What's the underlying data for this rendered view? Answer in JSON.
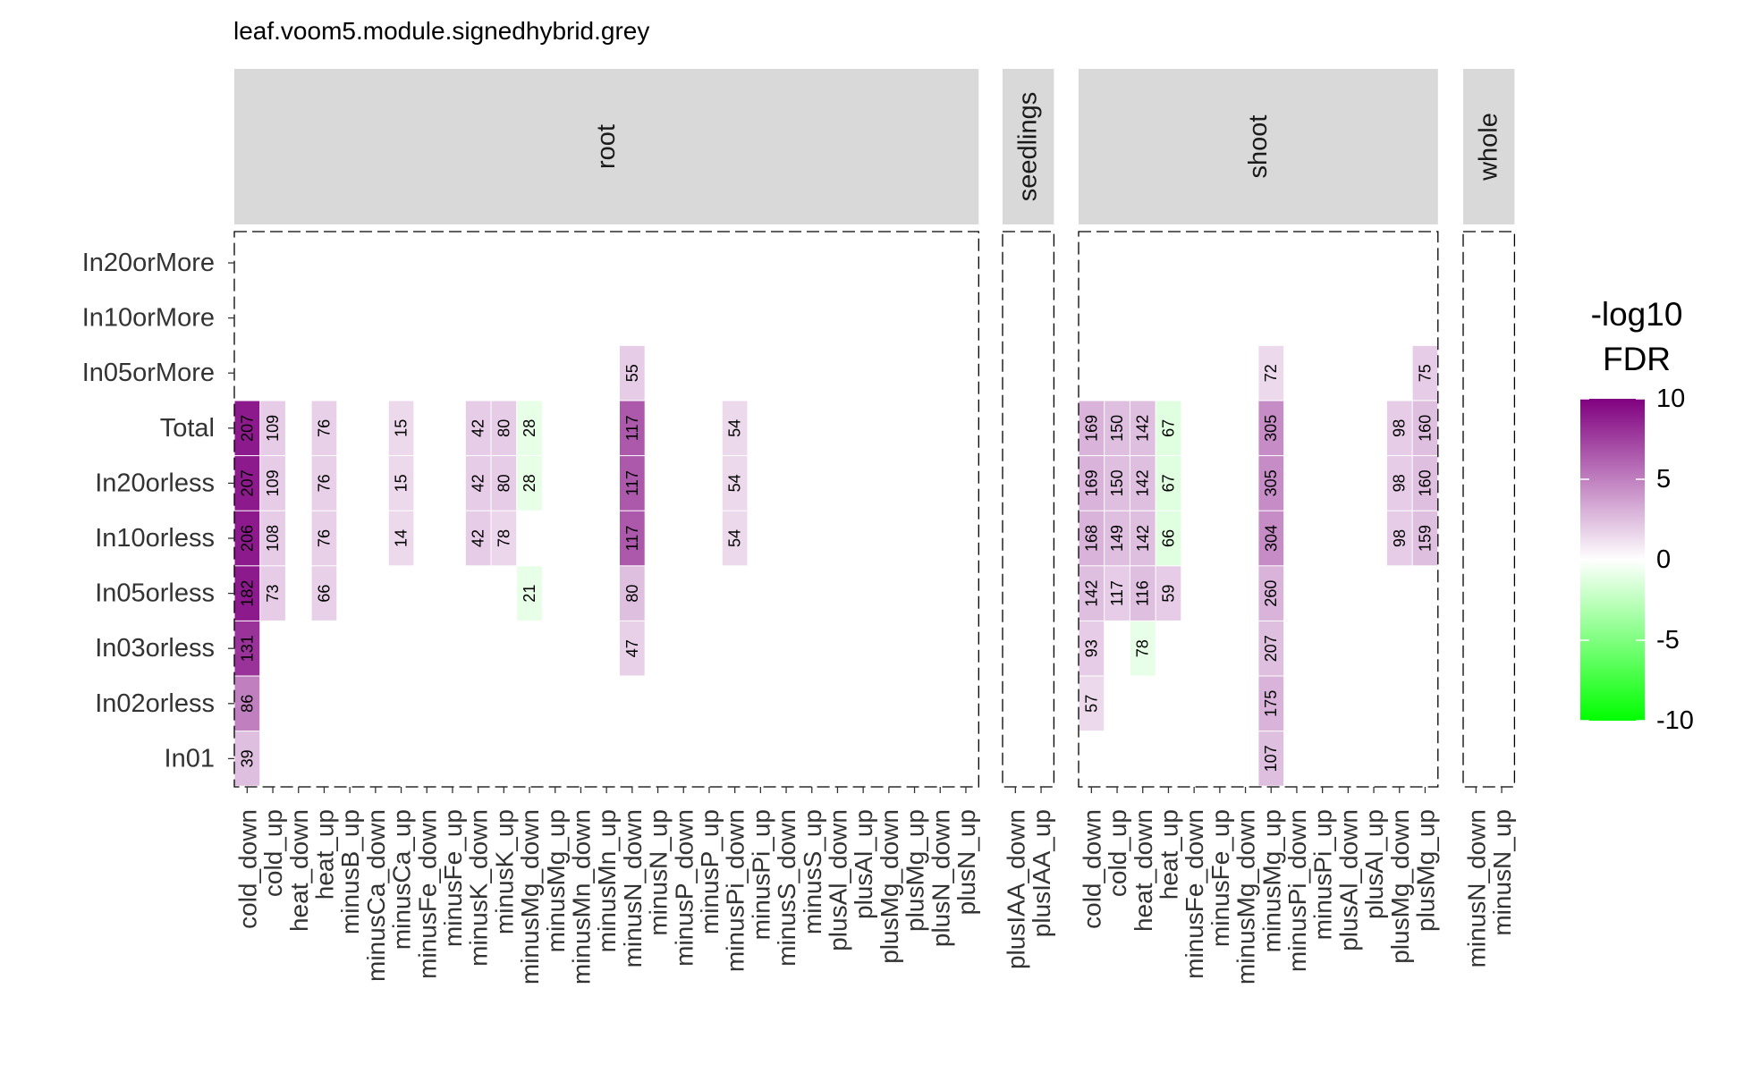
{
  "chart_data": {
    "type": "heatmap",
    "title": "leaf.voom5.module.signedhybrid.grey",
    "rows": [
      "In20orMore",
      "In10orMore",
      "In05orMore",
      "Total",
      "In20orless",
      "In10orless",
      "In05orless",
      "In03orless",
      "In02orless",
      "In01"
    ],
    "facets": [
      {
        "name": "root",
        "columns": [
          "cold_down",
          "cold_up",
          "heat_down",
          "heat_up",
          "minusB_up",
          "minusCa_down",
          "minusCa_up",
          "minusFe_down",
          "minusFe_up",
          "minusK_down",
          "minusK_up",
          "minusMg_down",
          "minusMg_up",
          "minusMn_down",
          "minusMn_up",
          "minusN_down",
          "minusN_up",
          "minusP_down",
          "minusP_up",
          "minusPi_down",
          "minusPi_up",
          "minusS_down",
          "minusS_up",
          "plusAl_down",
          "plusAl_up",
          "plusMg_down",
          "plusMg_up",
          "plusN_down",
          "plusN_up"
        ]
      },
      {
        "name": "seedlings",
        "columns": [
          "plusIAA_down",
          "plusIAA_up"
        ]
      },
      {
        "name": "shoot",
        "columns": [
          "cold_down",
          "cold_up",
          "heat_down",
          "heat_up",
          "minusFe_down",
          "minusFe_up",
          "minusMg_down",
          "minusMg_up",
          "minusPi_down",
          "minusPi_up",
          "plusAl_down",
          "plusAl_up",
          "plusMg_down",
          "plusMg_up"
        ]
      },
      {
        "name": "whole",
        "columns": [
          "minusN_down",
          "minusN_up"
        ]
      }
    ],
    "cells": [
      {
        "facet": "root",
        "col": "cold_down",
        "row": "Total",
        "count": 207,
        "value": 9.0
      },
      {
        "facet": "root",
        "col": "cold_down",
        "row": "In20orless",
        "count": 207,
        "value": 9.0
      },
      {
        "facet": "root",
        "col": "cold_down",
        "row": "In10orless",
        "count": 206,
        "value": 9.0
      },
      {
        "facet": "root",
        "col": "cold_down",
        "row": "In05orless",
        "count": 182,
        "value": 9.0
      },
      {
        "facet": "root",
        "col": "cold_down",
        "row": "In03orless",
        "count": 131,
        "value": 8.0
      },
      {
        "facet": "root",
        "col": "cold_down",
        "row": "In02orless",
        "count": 86,
        "value": 5.0
      },
      {
        "facet": "root",
        "col": "cold_down",
        "row": "In01",
        "count": 39,
        "value": 2.5
      },
      {
        "facet": "root",
        "col": "cold_up",
        "row": "Total",
        "count": 109,
        "value": 2.0
      },
      {
        "facet": "root",
        "col": "cold_up",
        "row": "In20orless",
        "count": 109,
        "value": 2.0
      },
      {
        "facet": "root",
        "col": "cold_up",
        "row": "In10orless",
        "count": 108,
        "value": 2.0
      },
      {
        "facet": "root",
        "col": "cold_up",
        "row": "In05orless",
        "count": 73,
        "value": 2.0
      },
      {
        "facet": "root",
        "col": "heat_up",
        "row": "Total",
        "count": 76,
        "value": 1.8
      },
      {
        "facet": "root",
        "col": "heat_up",
        "row": "In20orless",
        "count": 76,
        "value": 1.8
      },
      {
        "facet": "root",
        "col": "heat_up",
        "row": "In10orless",
        "count": 76,
        "value": 1.8
      },
      {
        "facet": "root",
        "col": "heat_up",
        "row": "In05orless",
        "count": 66,
        "value": 1.8
      },
      {
        "facet": "root",
        "col": "minusCa_up",
        "row": "Total",
        "count": 15,
        "value": 1.5
      },
      {
        "facet": "root",
        "col": "minusCa_up",
        "row": "In20orless",
        "count": 15,
        "value": 1.5
      },
      {
        "facet": "root",
        "col": "minusCa_up",
        "row": "In10orless",
        "count": 14,
        "value": 1.5
      },
      {
        "facet": "root",
        "col": "minusK_down",
        "row": "Total",
        "count": 42,
        "value": 2.0
      },
      {
        "facet": "root",
        "col": "minusK_down",
        "row": "In20orless",
        "count": 42,
        "value": 2.0
      },
      {
        "facet": "root",
        "col": "minusK_down",
        "row": "In10orless",
        "count": 42,
        "value": 2.0
      },
      {
        "facet": "root",
        "col": "minusK_up",
        "row": "Total",
        "count": 80,
        "value": 2.0
      },
      {
        "facet": "root",
        "col": "minusK_up",
        "row": "In20orless",
        "count": 80,
        "value": 2.0
      },
      {
        "facet": "root",
        "col": "minusK_up",
        "row": "In10orless",
        "count": 78,
        "value": 1.6
      },
      {
        "facet": "root",
        "col": "minusMg_down",
        "row": "Total",
        "count": 28,
        "value": -1.0
      },
      {
        "facet": "root",
        "col": "minusMg_down",
        "row": "In20orless",
        "count": 28,
        "value": -1.0
      },
      {
        "facet": "root",
        "col": "minusMg_down",
        "row": "In05orless",
        "count": 21,
        "value": -1.0
      },
      {
        "facet": "root",
        "col": "minusN_down",
        "row": "In05orMore",
        "count": 55,
        "value": 2.0
      },
      {
        "facet": "root",
        "col": "minusN_down",
        "row": "Total",
        "count": 117,
        "value": 6.5
      },
      {
        "facet": "root",
        "col": "minusN_down",
        "row": "In20orless",
        "count": 117,
        "value": 6.5
      },
      {
        "facet": "root",
        "col": "minusN_down",
        "row": "In10orless",
        "count": 117,
        "value": 6.5
      },
      {
        "facet": "root",
        "col": "minusN_down",
        "row": "In05orless",
        "count": 80,
        "value": 2.5
      },
      {
        "facet": "root",
        "col": "minusN_down",
        "row": "In03orless",
        "count": 47,
        "value": 1.8
      },
      {
        "facet": "root",
        "col": "minusPi_down",
        "row": "Total",
        "count": 54,
        "value": 1.5
      },
      {
        "facet": "root",
        "col": "minusPi_down",
        "row": "In20orless",
        "count": 54,
        "value": 1.5
      },
      {
        "facet": "root",
        "col": "minusPi_down",
        "row": "In10orless",
        "count": 54,
        "value": 1.5
      },
      {
        "facet": "shoot",
        "col": "cold_down",
        "row": "Total",
        "count": 169,
        "value": 3.0
      },
      {
        "facet": "shoot",
        "col": "cold_down",
        "row": "In20orless",
        "count": 169,
        "value": 3.0
      },
      {
        "facet": "shoot",
        "col": "cold_down",
        "row": "In10orless",
        "count": 168,
        "value": 3.0
      },
      {
        "facet": "shoot",
        "col": "cold_down",
        "row": "In05orless",
        "count": 142,
        "value": 2.5
      },
      {
        "facet": "shoot",
        "col": "cold_down",
        "row": "In03orless",
        "count": 93,
        "value": 2.0
      },
      {
        "facet": "shoot",
        "col": "cold_down",
        "row": "In02orless",
        "count": 57,
        "value": 1.5
      },
      {
        "facet": "shoot",
        "col": "cold_up",
        "row": "Total",
        "count": 150,
        "value": 2.5
      },
      {
        "facet": "shoot",
        "col": "cold_up",
        "row": "In20orless",
        "count": 150,
        "value": 2.5
      },
      {
        "facet": "shoot",
        "col": "cold_up",
        "row": "In10orless",
        "count": 149,
        "value": 2.5
      },
      {
        "facet": "shoot",
        "col": "cold_up",
        "row": "In05orless",
        "count": 117,
        "value": 2.0
      },
      {
        "facet": "shoot",
        "col": "heat_down",
        "row": "Total",
        "count": 142,
        "value": 2.5
      },
      {
        "facet": "shoot",
        "col": "heat_down",
        "row": "In20orless",
        "count": 142,
        "value": 2.5
      },
      {
        "facet": "shoot",
        "col": "heat_down",
        "row": "In10orless",
        "count": 142,
        "value": 2.5
      },
      {
        "facet": "shoot",
        "col": "heat_down",
        "row": "In05orless",
        "count": 116,
        "value": 2.5
      },
      {
        "facet": "shoot",
        "col": "heat_down",
        "row": "In03orless",
        "count": 78,
        "value": -1.0
      },
      {
        "facet": "shoot",
        "col": "heat_up",
        "row": "Total",
        "count": 67,
        "value": -1.2
      },
      {
        "facet": "shoot",
        "col": "heat_up",
        "row": "In20orless",
        "count": 67,
        "value": -1.2
      },
      {
        "facet": "shoot",
        "col": "heat_up",
        "row": "In10orless",
        "count": 66,
        "value": -1.2
      },
      {
        "facet": "shoot",
        "col": "heat_up",
        "row": "In05orless",
        "count": 59,
        "value": 2.0
      },
      {
        "facet": "shoot",
        "col": "minusMg_up",
        "row": "In05orMore",
        "count": 72,
        "value": 1.5
      },
      {
        "facet": "shoot",
        "col": "minusMg_up",
        "row": "Total",
        "count": 305,
        "value": 4.5
      },
      {
        "facet": "shoot",
        "col": "minusMg_up",
        "row": "In20orless",
        "count": 305,
        "value": 4.5
      },
      {
        "facet": "shoot",
        "col": "minusMg_up",
        "row": "In10orless",
        "count": 304,
        "value": 4.5
      },
      {
        "facet": "shoot",
        "col": "minusMg_up",
        "row": "In05orless",
        "count": 260,
        "value": 3.0
      },
      {
        "facet": "shoot",
        "col": "minusMg_up",
        "row": "In03orless",
        "count": 207,
        "value": 2.5
      },
      {
        "facet": "shoot",
        "col": "minusMg_up",
        "row": "In02orless",
        "count": 175,
        "value": 3.0
      },
      {
        "facet": "shoot",
        "col": "minusMg_up",
        "row": "In01",
        "count": 107,
        "value": 2.5
      },
      {
        "facet": "shoot",
        "col": "plusMg_down",
        "row": "Total",
        "count": 98,
        "value": 2.0
      },
      {
        "facet": "shoot",
        "col": "plusMg_down",
        "row": "In20orless",
        "count": 98,
        "value": 2.0
      },
      {
        "facet": "shoot",
        "col": "plusMg_down",
        "row": "In10orless",
        "count": 98,
        "value": 2.0
      },
      {
        "facet": "shoot",
        "col": "plusMg_up",
        "row": "In05orMore",
        "count": 75,
        "value": 2.0
      },
      {
        "facet": "shoot",
        "col": "plusMg_up",
        "row": "Total",
        "count": 160,
        "value": 2.5
      },
      {
        "facet": "shoot",
        "col": "plusMg_up",
        "row": "In20orless",
        "count": 160,
        "value": 2.5
      },
      {
        "facet": "shoot",
        "col": "plusMg_up",
        "row": "In10orless",
        "count": 159,
        "value": 2.5
      }
    ],
    "legend": {
      "title_lines": [
        "-log10",
        "FDR"
      ],
      "ticks": [
        10,
        5,
        0,
        -5,
        -10
      ],
      "range": [
        -10,
        10
      ],
      "colors": {
        "high": "#800080",
        "mid": "#ffffff",
        "low": "#00ff00"
      },
      "position": "right"
    },
    "grid": false
  }
}
